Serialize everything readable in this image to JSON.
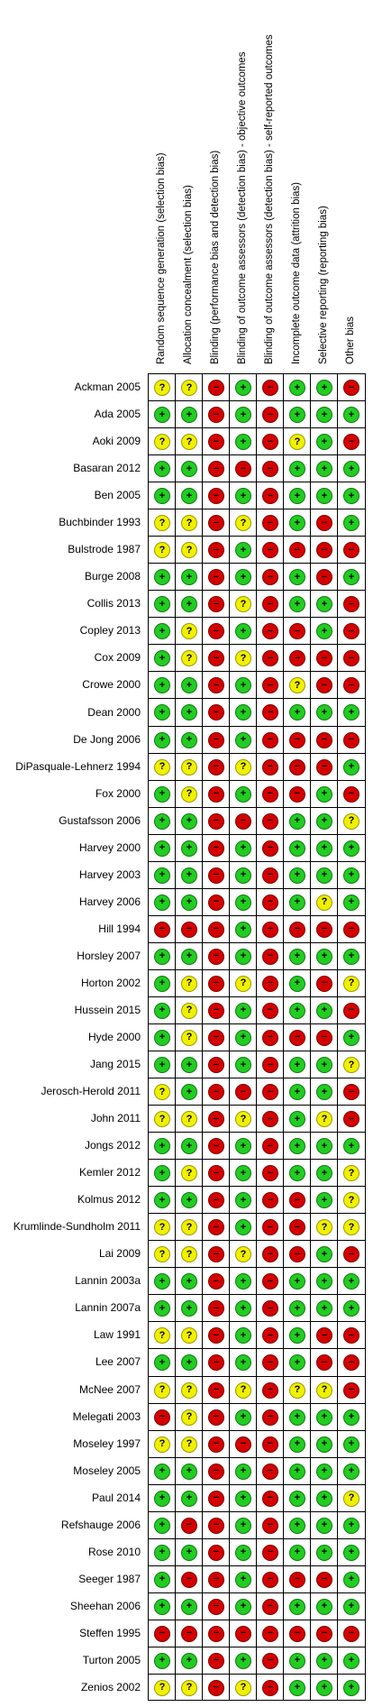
{
  "domains": [
    "Random sequence generation (selection bias)",
    "Allocation concealment (selection bias)",
    "Blinding (performance bias and detection bias)",
    "Blinding of outcome assessors (detection bias) - objective outcomes",
    "Blinding of outcome assessors (detection bias) - self-reported outcomes",
    "Incomplete outcome data (attrition bias)",
    "Selective reporting (reporting bias)",
    "Other bias"
  ],
  "symbols": {
    "+": "+",
    "-": "−",
    "?": "?"
  },
  "colors": {
    "low": "#22cc22",
    "high": "#d40000",
    "unclear": "#f0f000"
  },
  "studies": [
    {
      "name": "Ackman 2005",
      "ratings": [
        "?",
        "?",
        "-",
        "+",
        "-",
        "+",
        "+",
        "-"
      ]
    },
    {
      "name": "Ada 2005",
      "ratings": [
        "+",
        "+",
        "-",
        "+",
        "-",
        "+",
        "+",
        "+"
      ]
    },
    {
      "name": "Aoki 2009",
      "ratings": [
        "?",
        "?",
        "-",
        "+",
        "-",
        "?",
        "+",
        "-"
      ]
    },
    {
      "name": "Basaran 2012",
      "ratings": [
        "+",
        "+",
        "-",
        "-",
        "-",
        "+",
        "+",
        "+"
      ]
    },
    {
      "name": "Ben 2005",
      "ratings": [
        "+",
        "+",
        "-",
        "+",
        "-",
        "+",
        "+",
        "+"
      ]
    },
    {
      "name": "Buchbinder 1993",
      "ratings": [
        "?",
        "?",
        "-",
        "?",
        "-",
        "+",
        "-",
        "+"
      ]
    },
    {
      "name": "Bulstrode 1987",
      "ratings": [
        "?",
        "?",
        "-",
        "+",
        "-",
        "-",
        "-",
        "-"
      ]
    },
    {
      "name": "Burge 2008",
      "ratings": [
        "+",
        "+",
        "-",
        "+",
        "-",
        "+",
        "-",
        "+"
      ]
    },
    {
      "name": "Collis 2013",
      "ratings": [
        "+",
        "+",
        "-",
        "?",
        "-",
        "+",
        "+",
        "-"
      ]
    },
    {
      "name": "Copley 2013",
      "ratings": [
        "+",
        "?",
        "-",
        "+",
        "-",
        "-",
        "+",
        "-"
      ]
    },
    {
      "name": "Cox 2009",
      "ratings": [
        "+",
        "?",
        "-",
        "?",
        "-",
        "-",
        "-",
        "-"
      ]
    },
    {
      "name": "Crowe 2000",
      "ratings": [
        "+",
        "+",
        "-",
        "+",
        "-",
        "?",
        "-",
        "-"
      ]
    },
    {
      "name": "Dean 2000",
      "ratings": [
        "+",
        "+",
        "-",
        "+",
        "-",
        "+",
        "+",
        "+"
      ]
    },
    {
      "name": "De Jong 2006",
      "ratings": [
        "+",
        "+",
        "-",
        "+",
        "-",
        "-",
        "-",
        "-"
      ]
    },
    {
      "name": "DiPasquale-Lehnerz 1994",
      "ratings": [
        "?",
        "?",
        "-",
        "?",
        "-",
        "-",
        "-",
        "+"
      ]
    },
    {
      "name": "Fox 2000",
      "ratings": [
        "+",
        "?",
        "-",
        "+",
        "-",
        "-",
        "+",
        "-"
      ]
    },
    {
      "name": "Gustafsson 2006",
      "ratings": [
        "+",
        "+",
        "-",
        "-",
        "-",
        "+",
        "+",
        "?"
      ]
    },
    {
      "name": "Harvey 2000",
      "ratings": [
        "+",
        "+",
        "-",
        "+",
        "-",
        "+",
        "+",
        "+"
      ]
    },
    {
      "name": "Harvey 2003",
      "ratings": [
        "+",
        "+",
        "-",
        "+",
        "-",
        "+",
        "+",
        "+"
      ]
    },
    {
      "name": "Harvey 2006",
      "ratings": [
        "+",
        "+",
        "-",
        "+",
        "-",
        "+",
        "?",
        "+"
      ]
    },
    {
      "name": "Hill 1994",
      "ratings": [
        "-",
        "-",
        "-",
        "+",
        "-",
        "-",
        "-",
        "-"
      ]
    },
    {
      "name": "Horsley 2007",
      "ratings": [
        "+",
        "+",
        "-",
        "+",
        "-",
        "+",
        "+",
        "+"
      ]
    },
    {
      "name": "Horton 2002",
      "ratings": [
        "+",
        "?",
        "-",
        "?",
        "-",
        "+",
        "-",
        "?"
      ]
    },
    {
      "name": "Hussein 2015",
      "ratings": [
        "+",
        "?",
        "-",
        "+",
        "-",
        "+",
        "+",
        "-"
      ]
    },
    {
      "name": "Hyde 2000",
      "ratings": [
        "+",
        "?",
        "-",
        "+",
        "-",
        "-",
        "-",
        "+"
      ]
    },
    {
      "name": "Jang 2015",
      "ratings": [
        "+",
        "+",
        "-",
        "+",
        "-",
        "+",
        "+",
        "?"
      ]
    },
    {
      "name": "Jerosch-Herold 2011",
      "ratings": [
        "?",
        "+",
        "-",
        "-",
        "-",
        "+",
        "+",
        "-"
      ]
    },
    {
      "name": "John 2011",
      "ratings": [
        "?",
        "?",
        "-",
        "?",
        "-",
        "+",
        "?",
        "-"
      ]
    },
    {
      "name": "Jongs 2012",
      "ratings": [
        "+",
        "+",
        "-",
        "+",
        "-",
        "+",
        "+",
        "+"
      ]
    },
    {
      "name": "Kemler 2012",
      "ratings": [
        "+",
        "?",
        "-",
        "+",
        "-",
        "+",
        "+",
        "?"
      ]
    },
    {
      "name": "Kolmus 2012",
      "ratings": [
        "+",
        "+",
        "-",
        "+",
        "-",
        "-",
        "+",
        "?"
      ]
    },
    {
      "name": "Krumlinde-Sundholm 2011",
      "ratings": [
        "?",
        "?",
        "-",
        "+",
        "-",
        "-",
        "?",
        "?"
      ]
    },
    {
      "name": "Lai 2009",
      "ratings": [
        "?",
        "?",
        "-",
        "?",
        "-",
        "-",
        "+",
        "-"
      ]
    },
    {
      "name": "Lannin 2003a",
      "ratings": [
        "+",
        "+",
        "-",
        "+",
        "-",
        "+",
        "+",
        "+"
      ]
    },
    {
      "name": "Lannin 2007a",
      "ratings": [
        "+",
        "+",
        "-",
        "+",
        "-",
        "+",
        "+",
        "+"
      ]
    },
    {
      "name": "Law 1991",
      "ratings": [
        "?",
        "?",
        "-",
        "+",
        "-",
        "+",
        "-",
        "-"
      ]
    },
    {
      "name": "Lee 2007",
      "ratings": [
        "+",
        "+",
        "-",
        "+",
        "-",
        "+",
        "-",
        "-"
      ]
    },
    {
      "name": "McNee 2007",
      "ratings": [
        "?",
        "?",
        "-",
        "?",
        "-",
        "?",
        "?",
        "-"
      ]
    },
    {
      "name": "Melegati 2003",
      "ratings": [
        "-",
        "?",
        "-",
        "+",
        "-",
        "+",
        "+",
        "+"
      ]
    },
    {
      "name": "Moseley 1997",
      "ratings": [
        "?",
        "?",
        "-",
        "-",
        "-",
        "+",
        "+",
        "+"
      ]
    },
    {
      "name": "Moseley 2005",
      "ratings": [
        "+",
        "+",
        "-",
        "+",
        "-",
        "+",
        "+",
        "+"
      ]
    },
    {
      "name": "Paul 2014",
      "ratings": [
        "+",
        "+",
        "-",
        "+",
        "-",
        "+",
        "+",
        "?"
      ]
    },
    {
      "name": "Refshauge 2006",
      "ratings": [
        "+",
        "-",
        "-",
        "+",
        "-",
        "+",
        "+",
        "+"
      ]
    },
    {
      "name": "Rose 2010",
      "ratings": [
        "+",
        "+",
        "-",
        "+",
        "-",
        "+",
        "+",
        "+"
      ]
    },
    {
      "name": "Seeger 1987",
      "ratings": [
        "+",
        "-",
        "-",
        "+",
        "-",
        "-",
        "-",
        "+"
      ]
    },
    {
      "name": "Sheehan 2006",
      "ratings": [
        "+",
        "+",
        "-",
        "+",
        "-",
        "+",
        "+",
        "+"
      ]
    },
    {
      "name": "Steffen 1995",
      "ratings": [
        "-",
        "-",
        "-",
        "-",
        "-",
        "-",
        "-",
        "-"
      ]
    },
    {
      "name": "Turton 2005",
      "ratings": [
        "+",
        "+",
        "-",
        "+",
        "-",
        "+",
        "+",
        "+"
      ]
    },
    {
      "name": "Zenios 2002",
      "ratings": [
        "?",
        "?",
        "-",
        "?",
        "-",
        "+",
        "+",
        "+"
      ]
    }
  ]
}
